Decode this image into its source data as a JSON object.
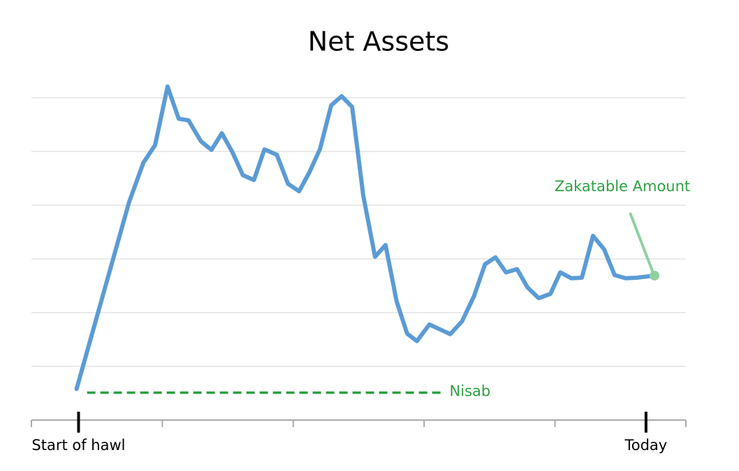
{
  "chart_data": {
    "type": "line",
    "title": "Net Assets",
    "x": [
      6.9,
      14.9,
      17.1,
      18.9,
      20.8,
      22.5,
      24.0,
      25.9,
      27.5,
      29.1,
      30.7,
      32.3,
      34.0,
      35.6,
      37.5,
      39.2,
      40.9,
      42.5,
      44.1,
      45.8,
      47.4,
      49.0,
      50.7,
      52.5,
      54.1,
      55.8,
      57.4,
      58.9,
      60.8,
      62.4,
      64.0,
      65.8,
      67.6,
      69.3,
      70.9,
      72.5,
      74.2,
      75.8,
      77.5,
      79.3,
      80.8,
      82.5,
      84.1,
      85.8,
      87.5,
      89.1,
      90.8,
      92.5,
      95.2
    ],
    "values": [
      0.58,
      4.05,
      4.79,
      5.12,
      6.21,
      5.61,
      5.58,
      5.19,
      5.03,
      5.34,
      4.99,
      4.56,
      4.47,
      5.04,
      4.94,
      4.4,
      4.26,
      4.62,
      5.05,
      5.86,
      6.03,
      5.83,
      4.18,
      3.04,
      3.26,
      2.21,
      1.61,
      1.47,
      1.78,
      1.69,
      1.6,
      1.84,
      2.3,
      2.9,
      3.03,
      2.75,
      2.81,
      2.47,
      2.27,
      2.35,
      2.75,
      2.64,
      2.65,
      3.43,
      3.18,
      2.7,
      2.64,
      2.65,
      2.69
    ],
    "color": "#5b9bd5",
    "xlim": [
      0,
      100
    ],
    "ylim": [
      0,
      6.6
    ],
    "ygrid": [
      1,
      2,
      3,
      4,
      5,
      6
    ],
    "x_tick_marks": [
      0,
      20,
      40,
      60,
      80,
      100
    ],
    "markers": [
      {
        "label": "Start of hawl",
        "x": 7.2
      },
      {
        "label": "Today",
        "x": 93.9
      }
    ],
    "nisab": {
      "label": "Nisab",
      "value": 0.51,
      "x_start": 8.5,
      "x_end": 62.6,
      "color": "#2ea043"
    },
    "annotation": {
      "text": "Zakatable Amount",
      "color": "#2ea043"
    }
  }
}
